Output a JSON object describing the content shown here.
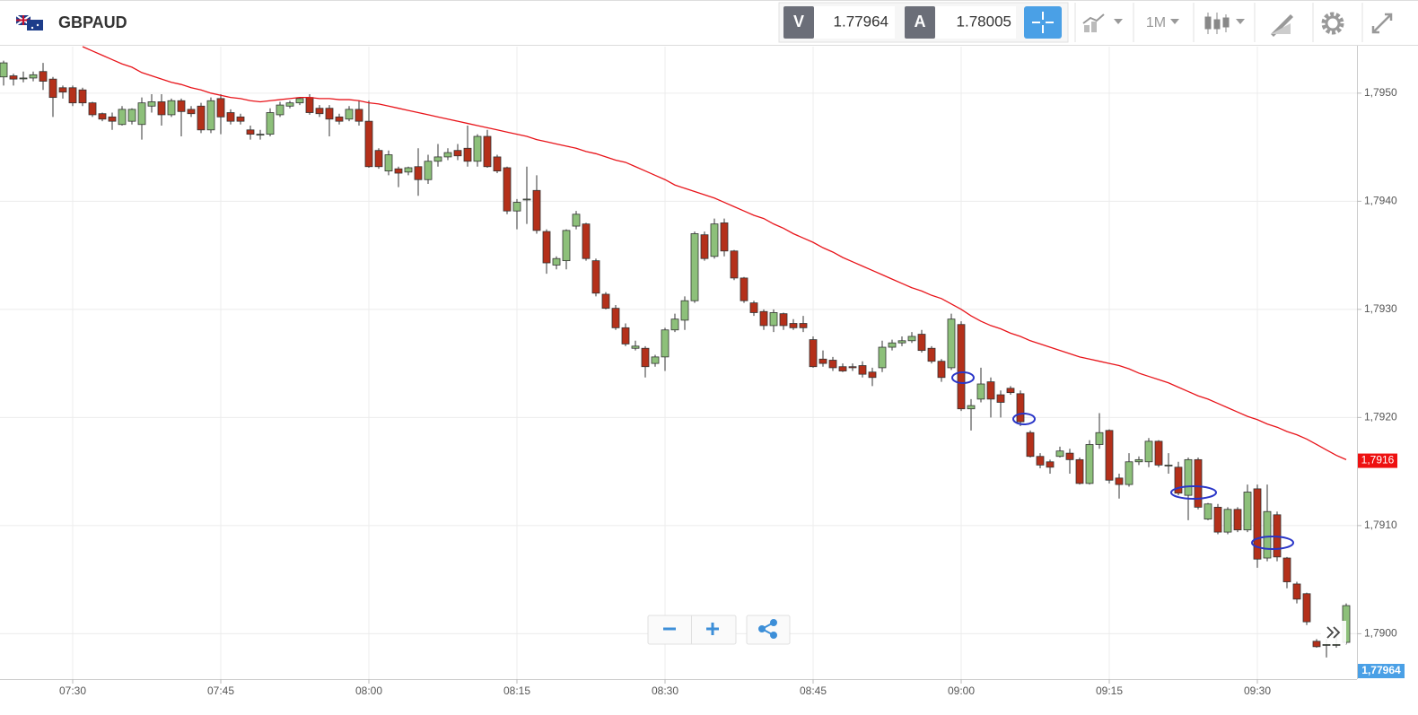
{
  "toolbar": {
    "symbol": "GBPAUD",
    "bid_label": "V",
    "bid": "1.77964",
    "ask_label": "A",
    "ask": "1.78005",
    "period": "1M"
  },
  "chart_data": {
    "type": "candlestick",
    "categories": [
      null,
      null,
      null,
      null,
      null,
      null,
      null,
      "07:30",
      null,
      null,
      null,
      null,
      null,
      null,
      null,
      null,
      null,
      null,
      null,
      null,
      null,
      null,
      "07:45",
      null,
      null,
      null,
      null,
      null,
      null,
      null,
      null,
      null,
      null,
      null,
      null,
      null,
      null,
      "08:00",
      null,
      null,
      null,
      null,
      null,
      null,
      null,
      null,
      null,
      null,
      null,
      null,
      null,
      null,
      "08:15",
      null,
      null,
      null,
      null,
      null,
      null,
      null,
      null,
      null,
      null,
      null,
      null,
      null,
      null,
      "08:30",
      null,
      null,
      null,
      null,
      null,
      null,
      null,
      null,
      null,
      null,
      null,
      null,
      null,
      null,
      "08:45",
      null,
      null,
      null,
      null,
      null,
      null,
      null,
      null,
      null,
      null,
      null,
      null,
      null,
      null,
      "09:00",
      null,
      null,
      null,
      null,
      null,
      null,
      null,
      null,
      null,
      null,
      null,
      null,
      null,
      null,
      "09:15",
      null,
      null,
      null,
      null,
      null,
      null,
      null,
      null,
      null,
      null,
      null,
      null,
      null,
      null,
      "09:30",
      null,
      null,
      null,
      null,
      null,
      null,
      null,
      null,
      null
    ],
    "open": [
      1.79515,
      1.79516,
      1.79514,
      1.79514,
      1.7952,
      1.79513,
      1.79505,
      1.79505,
      1.79503,
      1.79491,
      1.79481,
      1.79478,
      1.79471,
      1.79474,
      1.79471,
      1.79488,
      1.79492,
      1.7948,
      1.79493,
      1.79485,
      1.79488,
      1.79466,
      1.79495,
      1.79482,
      1.79478,
      1.79466,
      1.79462,
      1.79462,
      1.7948,
      1.79488,
      1.79491,
      1.79496,
      1.79486,
      1.79486,
      1.79478,
      1.79476,
      1.79485,
      1.79474,
      1.79447,
      1.79428,
      1.7943,
      1.79427,
      1.79432,
      1.7942,
      1.79437,
      1.79441,
      1.79447,
      1.79449,
      1.79437,
      1.7946,
      1.79441,
      1.79431,
      1.79391,
      1.79402,
      1.7941,
      1.79372,
      1.79341,
      1.79345,
      1.79377,
      1.79379,
      1.79345,
      1.79314,
      1.79301,
      1.79283,
      1.79264,
      1.79264,
      1.7925,
      1.79256,
      1.79281,
      1.7929,
      1.79308,
      1.79369,
      1.79349,
      1.7938,
      1.79354,
      1.79329,
      1.79306,
      1.79298,
      1.79285,
      1.79296,
      1.79287,
      1.79287,
      1.79272,
      1.79254,
      1.79253,
      1.79247,
      1.79247,
      1.79248,
      1.79242,
      1.79246,
      1.79265,
      1.79269,
      1.79271,
      1.79277,
      1.79264,
      1.79252,
      1.79246,
      1.79286,
      1.79208,
      1.79217,
      1.79233,
      1.79221,
      1.79227,
      1.79222,
      1.79186,
      1.79164,
      1.79159,
      1.79164,
      1.79167,
      1.79161,
      1.79139,
      1.79175,
      1.79188,
      1.79144,
      1.79138,
      1.79159,
      1.79159,
      1.79178,
      1.79156,
      1.79154,
      1.79128,
      1.79161,
      1.79106,
      1.79117,
      1.79094,
      1.79115,
      1.79096,
      1.79134,
      1.7907,
      1.7911,
      1.7907,
      1.79046,
      1.79037,
      1.78993,
      1.7899,
      1.7899,
      1.78992
    ],
    "high": [
      1.7953,
      1.79518,
      1.7952,
      1.7952,
      1.79528,
      1.79515,
      1.79507,
      1.79507,
      1.79505,
      1.79492,
      1.79482,
      1.79482,
      1.79488,
      1.79486,
      1.79496,
      1.79499,
      1.79499,
      1.79495,
      1.79495,
      1.79488,
      1.79491,
      1.79496,
      1.79499,
      1.79485,
      1.79481,
      1.7947,
      1.79466,
      1.79486,
      1.79492,
      1.79493,
      1.79496,
      1.79499,
      1.79489,
      1.79489,
      1.79481,
      1.79488,
      1.79493,
      1.79493,
      1.79449,
      1.79447,
      1.79432,
      1.79432,
      1.79449,
      1.79443,
      1.79453,
      1.79449,
      1.79453,
      1.7947,
      1.79462,
      1.79466,
      1.79443,
      1.79432,
      1.79402,
      1.79432,
      1.79424,
      1.79374,
      1.79349,
      1.79374,
      1.79391,
      1.7938,
      1.79347,
      1.79316,
      1.79304,
      1.79287,
      1.79271,
      1.79266,
      1.79258,
      1.79283,
      1.79296,
      1.79312,
      1.79372,
      1.79372,
      1.79384,
      1.79384,
      1.79355,
      1.7933,
      1.79308,
      1.793,
      1.793,
      1.79297,
      1.79291,
      1.79294,
      1.79275,
      1.79262,
      1.79256,
      1.7925,
      1.7925,
      1.79252,
      1.79246,
      1.79271,
      1.79272,
      1.79275,
      1.79279,
      1.79281,
      1.79266,
      1.79254,
      1.79296,
      1.79289,
      1.79217,
      1.79246,
      1.79237,
      1.79225,
      1.79229,
      1.79225,
      1.79188,
      1.79167,
      1.79161,
      1.79173,
      1.79171,
      1.79163,
      1.79179,
      1.79204,
      1.79189,
      1.79148,
      1.79167,
      1.79164,
      1.79181,
      1.79179,
      1.79167,
      1.79159,
      1.79163,
      1.79163,
      1.79121,
      1.7912,
      1.79117,
      1.79117,
      1.79138,
      1.79138,
      1.79138,
      1.79113,
      1.79071,
      1.79048,
      1.79038,
      1.78995,
      1.78995,
      1.79005,
      1.79028
    ],
    "low": [
      1.79507,
      1.79507,
      1.7951,
      1.79511,
      1.79503,
      1.79478,
      1.79495,
      1.79488,
      1.79488,
      1.79478,
      1.79474,
      1.79466,
      1.7947,
      1.79471,
      1.79457,
      1.79482,
      1.7947,
      1.79478,
      1.7946,
      1.79478,
      1.79463,
      1.79463,
      1.79462,
      1.79471,
      1.79471,
      1.79457,
      1.79457,
      1.7946,
      1.79478,
      1.79486,
      1.79489,
      1.7948,
      1.79478,
      1.7946,
      1.79471,
      1.79474,
      1.7947,
      1.79431,
      1.7943,
      1.79424,
      1.79413,
      1.79424,
      1.79405,
      1.79416,
      1.79432,
      1.79438,
      1.79438,
      1.79432,
      1.79432,
      1.79431,
      1.79426,
      1.79388,
      1.79374,
      1.79379,
      1.7937,
      1.79333,
      1.79337,
      1.79337,
      1.79374,
      1.79345,
      1.79312,
      1.793,
      1.79281,
      1.79266,
      1.79262,
      1.79237,
      1.79247,
      1.79243,
      1.79279,
      1.79281,
      1.79306,
      1.79345,
      1.79347,
      1.79349,
      1.79327,
      1.79306,
      1.79294,
      1.79281,
      1.79279,
      1.79281,
      1.79281,
      1.79279,
      1.79246,
      1.79247,
      1.79243,
      1.79242,
      1.79243,
      1.79237,
      1.79229,
      1.79242,
      1.79262,
      1.79266,
      1.79269,
      1.7926,
      1.7925,
      1.79233,
      1.79244,
      1.79206,
      1.79188,
      1.79214,
      1.792,
      1.792,
      1.79221,
      1.79192,
      1.79163,
      1.79153,
      1.79148,
      1.79163,
      1.79148,
      1.79138,
      1.79138,
      1.79171,
      1.79139,
      1.79125,
      1.79136,
      1.79156,
      1.79154,
      1.79154,
      1.79148,
      1.79128,
      1.79105,
      1.79115,
      1.79105,
      1.79092,
      1.79092,
      1.79094,
      1.79094,
      1.79061,
      1.79067,
      1.79067,
      1.79042,
      1.79028,
      1.79008,
      1.78987,
      1.78978,
      1.78987,
      1.7899
    ],
    "close": [
      1.79528,
      1.79513,
      1.79514,
      1.79517,
      1.79511,
      1.79496,
      1.79501,
      1.79491,
      1.79491,
      1.7948,
      1.79476,
      1.79474,
      1.79485,
      1.79485,
      1.79491,
      1.79492,
      1.7948,
      1.79493,
      1.79483,
      1.79481,
      1.79466,
      1.79493,
      1.79478,
      1.79474,
      1.79474,
      1.79462,
      1.79462,
      1.79482,
      1.79489,
      1.79491,
      1.79495,
      1.79482,
      1.79481,
      1.79476,
      1.79474,
      1.79485,
      1.79474,
      1.79432,
      1.79432,
      1.79443,
      1.79426,
      1.79431,
      1.7942,
      1.79437,
      1.79441,
      1.79445,
      1.79442,
      1.79437,
      1.7946,
      1.79432,
      1.79428,
      1.79391,
      1.79399,
      1.79402,
      1.79373,
      1.79343,
      1.79347,
      1.79373,
      1.79388,
      1.79347,
      1.79315,
      1.79301,
      1.79283,
      1.79268,
      1.79266,
      1.79247,
      1.79256,
      1.79281,
      1.79291,
      1.79308,
      1.7937,
      1.79347,
      1.79379,
      1.79354,
      1.79329,
      1.79308,
      1.79297,
      1.79285,
      1.79297,
      1.79285,
      1.79283,
      1.79283,
      1.79247,
      1.7925,
      1.79246,
      1.79243,
      1.79246,
      1.7924,
      1.79237,
      1.79265,
      1.79269,
      1.79271,
      1.79275,
      1.79262,
      1.79252,
      1.79237,
      1.79291,
      1.79208,
      1.79211,
      1.79231,
      1.79217,
      1.79214,
      1.79223,
      1.79196,
      1.79164,
      1.79156,
      1.79154,
      1.79169,
      1.79161,
      1.79139,
      1.79175,
      1.79186,
      1.79142,
      1.79138,
      1.79159,
      1.79161,
      1.79178,
      1.79156,
      1.79156,
      1.7913,
      1.79161,
      1.79117,
      1.7912,
      1.79094,
      1.79115,
      1.79096,
      1.79131,
      1.79069,
      1.79113,
      1.79071,
      1.79048,
      1.79032,
      1.79011,
      1.78988,
      1.7899,
      1.7899,
      1.79026
    ],
    "up_color": "#8dc07a",
    "down_color": "#b4301a",
    "line": {
      "color": "#e8141a",
      "values": [
        null,
        null,
        null,
        null,
        null,
        null,
        null,
        null,
        1.79543,
        1.79539,
        1.79535,
        1.79531,
        1.79527,
        1.79524,
        1.79519,
        1.79516,
        1.79513,
        1.7951,
        1.79508,
        1.79505,
        1.79503,
        1.795,
        1.79498,
        1.79496,
        1.79495,
        1.79493,
        1.79492,
        1.79493,
        1.79494,
        1.79495,
        1.79496,
        1.79496,
        1.79495,
        1.79495,
        1.79494,
        1.79494,
        1.79493,
        1.79491,
        1.7949,
        1.79488,
        1.79486,
        1.79484,
        1.79482,
        1.7948,
        1.79478,
        1.79476,
        1.79474,
        1.79472,
        1.7947,
        1.79468,
        1.79466,
        1.79464,
        1.79462,
        1.7946,
        1.79457,
        1.79455,
        1.79453,
        1.79451,
        1.79449,
        1.79446,
        1.79444,
        1.79441,
        1.79438,
        1.79436,
        1.79432,
        1.79428,
        1.79424,
        1.7942,
        1.79415,
        1.79412,
        1.79409,
        1.79406,
        1.79403,
        1.79399,
        1.79395,
        1.79391,
        1.79387,
        1.79384,
        1.79379,
        1.79375,
        1.7937,
        1.79366,
        1.79362,
        1.79357,
        1.79353,
        1.79348,
        1.79344,
        1.7934,
        1.79336,
        1.79332,
        1.79328,
        1.79324,
        1.7932,
        1.79317,
        1.79313,
        1.7931,
        1.79305,
        1.793,
        1.79294,
        1.79289,
        1.79285,
        1.79282,
        1.79278,
        1.79275,
        1.79271,
        1.79268,
        1.79265,
        1.79262,
        1.79259,
        1.79256,
        1.79254,
        1.79252,
        1.7925,
        1.79248,
        1.79245,
        1.79241,
        1.79238,
        1.79235,
        1.79232,
        1.79228,
        1.79224,
        1.7922,
        1.79217,
        1.79213,
        1.79209,
        1.79205,
        1.79201,
        1.79198,
        1.79194,
        1.79191,
        1.79187,
        1.79184,
        1.7918,
        1.79175,
        1.7917,
        1.79165,
        1.79161
      ]
    },
    "line_tag": {
      "value": 1.7916,
      "label": "1,7916"
    },
    "price_tag": "1,77964",
    "ylim": [
      1.78958,
      1.79543
    ],
    "yticks": [
      {
        "value": 1.79,
        "label": "1,7900"
      },
      {
        "value": 1.791,
        "label": "1,7910"
      },
      {
        "value": 1.792,
        "label": "1,7920"
      },
      {
        "value": 1.793,
        "label": "1,7930"
      },
      {
        "value": 1.794,
        "label": "1,7940"
      },
      {
        "value": 1.795,
        "label": "1,7950"
      }
    ],
    "grid": true
  }
}
